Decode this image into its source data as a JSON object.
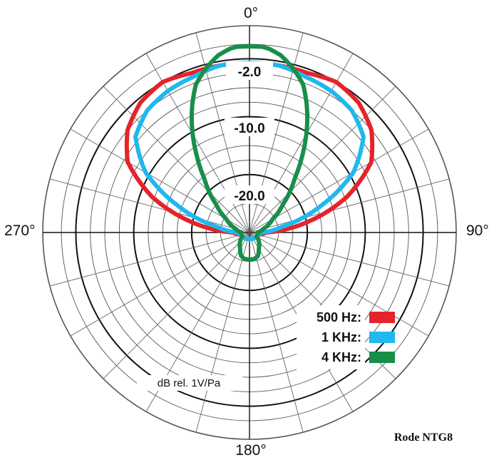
{
  "chart_data": {
    "type": "polar",
    "title": "",
    "angle_labels": [
      "0°",
      "90°",
      "180°",
      "270°"
    ],
    "ring_labels": [
      "-2.0",
      "-10.0",
      "-20.0"
    ],
    "unit_label": "dB rel. 1V/Pa",
    "caption": "Rode NTG8",
    "grid": true,
    "legend_position": "bottom-right",
    "angles_deg": [
      0,
      15,
      30,
      45,
      60,
      75,
      90,
      105,
      120,
      135,
      150,
      165,
      180
    ],
    "series": [
      {
        "name": "500 Hz:",
        "color": "#e5232b",
        "points": [
          [
            0,
            0.82
          ],
          [
            10,
            0.82
          ],
          [
            20,
            0.82
          ],
          [
            30,
            0.84
          ],
          [
            40,
            0.82
          ],
          [
            50,
            0.77
          ],
          [
            60,
            0.68
          ],
          [
            70,
            0.5
          ],
          [
            80,
            0.28
          ],
          [
            90,
            0.08
          ],
          [
            105,
            0.04
          ],
          [
            180,
            0.03
          ]
        ]
      },
      {
        "name": "1 KHz:",
        "color": "#20b8ee",
        "points": [
          [
            0,
            0.82
          ],
          [
            10,
            0.82
          ],
          [
            20,
            0.8
          ],
          [
            30,
            0.79
          ],
          [
            40,
            0.77
          ],
          [
            50,
            0.72
          ],
          [
            60,
            0.58
          ],
          [
            70,
            0.36
          ],
          [
            80,
            0.16
          ],
          [
            90,
            0.06
          ],
          [
            105,
            0.04
          ],
          [
            180,
            0.03
          ]
        ]
      },
      {
        "name": "4 KHz:",
        "color": "#178f4b",
        "points": [
          [
            0,
            0.9
          ],
          [
            5,
            0.9
          ],
          [
            10,
            0.87
          ],
          [
            15,
            0.82
          ],
          [
            20,
            0.76
          ],
          [
            25,
            0.66
          ],
          [
            30,
            0.55
          ],
          [
            35,
            0.44
          ],
          [
            40,
            0.34
          ],
          [
            50,
            0.21
          ],
          [
            60,
            0.13
          ],
          [
            75,
            0.07
          ],
          [
            90,
            0.04
          ],
          [
            120,
            0.04
          ],
          [
            150,
            0.09
          ],
          [
            160,
            0.12
          ],
          [
            170,
            0.13
          ],
          [
            180,
            0.13
          ]
        ]
      }
    ]
  }
}
